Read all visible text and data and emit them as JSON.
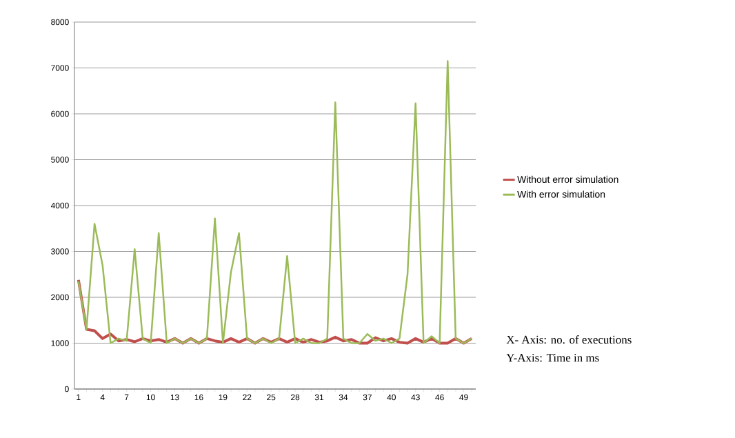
{
  "chart_data": {
    "type": "line",
    "categories": [
      "1",
      null,
      null,
      "4",
      null,
      null,
      "7",
      null,
      null,
      "10",
      null,
      null,
      "13",
      null,
      null,
      "16",
      null,
      null,
      "19",
      null,
      null,
      "22",
      null,
      null,
      "25",
      null,
      null,
      "28",
      null,
      null,
      "31",
      null,
      null,
      "34",
      null,
      null,
      "37",
      null,
      null,
      "40",
      null,
      null,
      "43",
      null,
      null,
      "46",
      null,
      null,
      "49",
      null
    ],
    "series": [
      {
        "name": "Without error simulation",
        "color": "#c0504d",
        "values": [
          2380,
          1300,
          1270,
          1100,
          1200,
          1050,
          1080,
          1030,
          1100,
          1050,
          1080,
          1020,
          1100,
          1000,
          1100,
          1000,
          1100,
          1050,
          1020,
          1100,
          1020,
          1100,
          1000,
          1100,
          1020,
          1100,
          1020,
          1100,
          1020,
          1080,
          1020,
          1050,
          1130,
          1050,
          1080,
          1000,
          1000,
          1120,
          1050,
          1100,
          1020,
          1000,
          1100,
          1020,
          1100,
          1000,
          1000,
          1100,
          1000,
          1100
        ]
      },
      {
        "name": "With error simulation",
        "color": "#9bbb59",
        "values": [
          2350,
          1300,
          3600,
          2700,
          1000,
          1100,
          1050,
          3050,
          1100,
          1000,
          3400,
          1000,
          1100,
          1000,
          1100,
          1000,
          1100,
          3720,
          1000,
          2550,
          3400,
          1100,
          1000,
          1100,
          1000,
          1100,
          2900,
          1000,
          1100,
          1000,
          1000,
          1100,
          6250,
          1100,
          1000,
          1000,
          1200,
          1050,
          1100,
          1000,
          1100,
          2500,
          6230,
          1000,
          1150,
          1000,
          7150,
          1100,
          1000,
          1100
        ]
      }
    ],
    "ylim": [
      0,
      8000
    ],
    "yticks": [
      0,
      1000,
      2000,
      3000,
      4000,
      5000,
      6000,
      7000,
      8000
    ],
    "grid": "y",
    "legend": "right",
    "marker": "none",
    "line_style": "solid",
    "annotations": [
      "X- Axis: no. of executions",
      "Y-Axis: Time in ms"
    ]
  }
}
